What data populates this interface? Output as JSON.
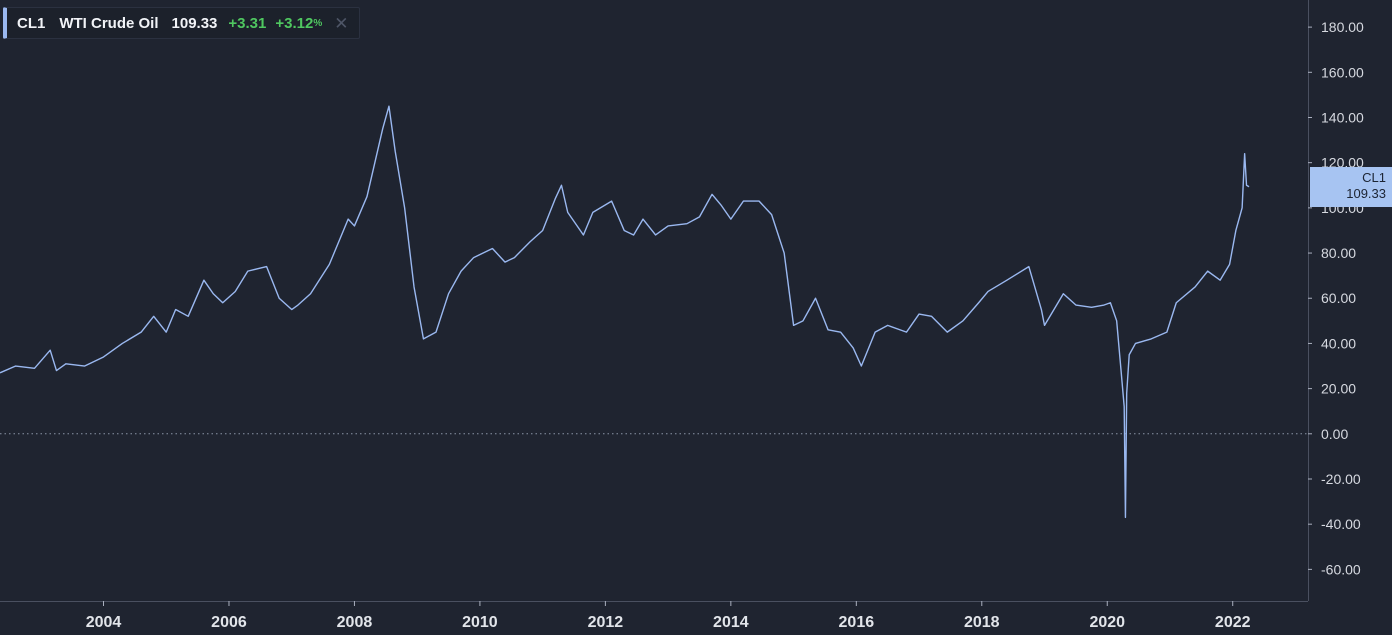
{
  "legend": {
    "ticker": "CL1",
    "name": "WTI Crude Oil",
    "price": "109.33",
    "change": "+3.31",
    "change_pct": "+3.12",
    "pct_symbol": "%",
    "close_glyph": "✕",
    "close_icon": "close-icon"
  },
  "price_tag": {
    "ticker": "CL1",
    "value": "109.33"
  },
  "colors": {
    "background": "#1f2430",
    "line": "#9ab8f0",
    "positive": "#4fc760",
    "price_tag": "#a7c4f2",
    "axis": "#aab0bf"
  },
  "chart_data": {
    "type": "line",
    "title": "",
    "xlabel": "",
    "ylabel": "",
    "xlim": [
      2002.35,
      2023.2
    ],
    "ylim": [
      -74,
      192
    ],
    "x_ticks": [
      2004,
      2006,
      2008,
      2010,
      2012,
      2014,
      2016,
      2018,
      2020,
      2022
    ],
    "x_tick_labels": [
      "2004",
      "2006",
      "2008",
      "2010",
      "2012",
      "2014",
      "2016",
      "2018",
      "2020",
      "2022"
    ],
    "y_ticks": [
      180,
      160,
      140,
      120,
      100,
      80,
      60,
      40,
      20,
      0,
      -20,
      -40,
      -60
    ],
    "y_tick_labels": [
      "180.00",
      "160.00",
      "140.00",
      "120.00",
      "100.00",
      "80.00",
      "60.00",
      "40.00",
      "20.00",
      "0.00",
      "-20.00",
      "-40.00",
      "-60.00"
    ],
    "zero_line": true,
    "grid": false,
    "legend_position": "top-left",
    "series": [
      {
        "name": "CL1",
        "x": [
          2002.35,
          2002.6,
          2002.9,
          2003.15,
          2003.25,
          2003.4,
          2003.7,
          2004.0,
          2004.3,
          2004.6,
          2004.8,
          2005.0,
          2005.15,
          2005.35,
          2005.6,
          2005.75,
          2005.9,
          2006.1,
          2006.3,
          2006.6,
          2006.8,
          2007.0,
          2007.1,
          2007.3,
          2007.6,
          2007.9,
          2008.0,
          2008.2,
          2008.45,
          2008.55,
          2008.65,
          2008.8,
          2008.95,
          2009.1,
          2009.3,
          2009.5,
          2009.7,
          2009.9,
          2010.2,
          2010.4,
          2010.55,
          2010.8,
          2011.0,
          2011.2,
          2011.3,
          2011.4,
          2011.65,
          2011.8,
          2012.1,
          2012.3,
          2012.45,
          2012.6,
          2012.8,
          2013.0,
          2013.3,
          2013.5,
          2013.7,
          2013.85,
          2014.0,
          2014.2,
          2014.45,
          2014.65,
          2014.85,
          2015.0,
          2015.15,
          2015.35,
          2015.55,
          2015.75,
          2015.95,
          2016.08,
          2016.3,
          2016.5,
          2016.8,
          2017.0,
          2017.2,
          2017.45,
          2017.7,
          2017.95,
          2018.1,
          2018.4,
          2018.75,
          2018.95,
          2019.0,
          2019.3,
          2019.5,
          2019.75,
          2019.95,
          2020.05,
          2020.15,
          2020.22,
          2020.27,
          2020.29,
          2020.31,
          2020.35,
          2020.45,
          2020.7,
          2020.95,
          2021.1,
          2021.4,
          2021.6,
          2021.8,
          2021.95,
          2022.05,
          2022.15,
          2022.19,
          2022.22,
          2022.26
        ],
        "values": [
          27,
          30,
          29,
          37,
          28,
          31,
          30,
          34,
          40,
          45,
          52,
          45,
          55,
          52,
          68,
          62,
          58,
          63,
          72,
          74,
          60,
          55,
          57,
          62,
          75,
          95,
          92,
          105,
          135,
          145,
          125,
          100,
          65,
          42,
          45,
          62,
          72,
          78,
          82,
          76,
          78,
          85,
          90,
          104,
          110,
          98,
          88,
          98,
          103,
          90,
          88,
          95,
          88,
          92,
          93,
          96,
          106,
          101,
          95,
          103,
          103,
          97,
          80,
          48,
          50,
          60,
          46,
          45,
          38,
          30,
          45,
          48,
          45,
          53,
          52,
          45,
          50,
          58,
          63,
          68,
          74,
          55,
          48,
          62,
          57,
          56,
          57,
          58,
          50,
          28,
          12,
          -37,
          18,
          35,
          40,
          42,
          45,
          58,
          65,
          72,
          68,
          75,
          90,
          100,
          124,
          110,
          109.33
        ]
      }
    ]
  }
}
